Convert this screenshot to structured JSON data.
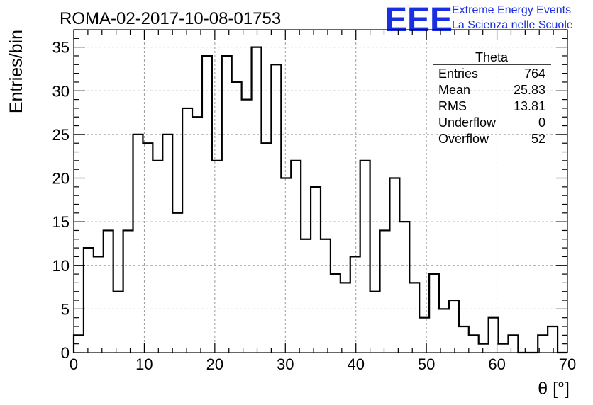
{
  "chart_data": {
    "type": "bar",
    "title": "ROMA-02-2017-10-08-01753",
    "xlabel": "θ [°]",
    "ylabel": "Entries/bin",
    "xlim": [
      0,
      70
    ],
    "ylim": [
      0,
      37
    ],
    "bin_width": 1.4,
    "x_ticks": [
      0,
      10,
      20,
      30,
      40,
      50,
      60,
      70
    ],
    "y_ticks": [
      0,
      5,
      10,
      15,
      20,
      25,
      30,
      35
    ],
    "grid": true,
    "values": [
      2,
      12,
      11,
      14,
      7,
      14,
      25,
      24,
      22,
      25,
      16,
      28,
      27,
      34,
      22,
      34,
      31,
      29,
      35,
      24,
      33,
      20,
      22,
      13,
      19,
      13,
      9,
      8,
      11,
      22,
      7,
      14,
      20,
      15,
      8,
      4,
      9,
      5,
      6,
      3,
      2,
      1,
      4,
      1,
      2,
      0,
      0,
      2,
      3,
      0
    ],
    "stats_box": {
      "name": "Theta",
      "rows": [
        {
          "label": "Entries",
          "value": "764"
        },
        {
          "label": "Mean",
          "value": "25.83"
        },
        {
          "label": "RMS",
          "value": "13.81"
        },
        {
          "label": "Underflow",
          "value": "0"
        },
        {
          "label": "Overflow",
          "value": "52"
        }
      ],
      "placement": "top-right"
    }
  },
  "logo": {
    "text": "EEE",
    "line1": "Extreme Energy Events",
    "line2": "La Scienza nelle Scuole",
    "color": "#1a2fe0"
  }
}
